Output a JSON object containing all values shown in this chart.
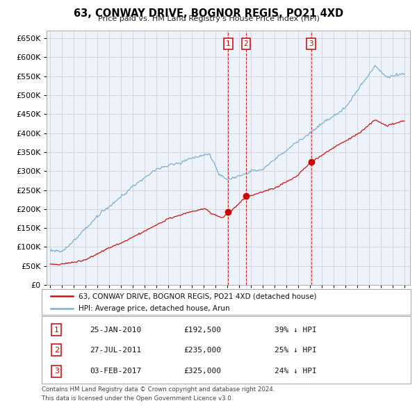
{
  "title": "63, CONWAY DRIVE, BOGNOR REGIS, PO21 4XD",
  "subtitle": "Price paid vs. HM Land Registry's House Price Index (HPI)",
  "legend_line1": "63, CONWAY DRIVE, BOGNOR REGIS, PO21 4XD (detached house)",
  "legend_line2": "HPI: Average price, detached house, Arun",
  "footer1": "Contains HM Land Registry data © Crown copyright and database right 2024.",
  "footer2": "This data is licensed under the Open Government Licence v3.0.",
  "transactions": [
    {
      "label": "1",
      "date": "25-JAN-2010",
      "price": 192500,
      "pct": "39% ↓ HPI",
      "x": 2010.07
    },
    {
      "label": "2",
      "date": "27-JUL-2011",
      "price": 235000,
      "pct": "25% ↓ HPI",
      "x": 2011.57
    },
    {
      "label": "3",
      "date": "03-FEB-2017",
      "price": 325000,
      "pct": "24% ↓ HPI",
      "x": 2017.09
    }
  ],
  "hpi_color": "#7bafd4",
  "price_color": "#cc1111",
  "marker_color": "#cc0000",
  "ylim": [
    0,
    670000
  ],
  "xlim": [
    1994.7,
    2025.5
  ],
  "yticks": [
    0,
    50000,
    100000,
    150000,
    200000,
    250000,
    300000,
    350000,
    400000,
    450000,
    500000,
    550000,
    600000,
    650000
  ],
  "background_color": "#ffffff",
  "grid_color": "#cccccc",
  "chart_bg": "#eef3fb"
}
